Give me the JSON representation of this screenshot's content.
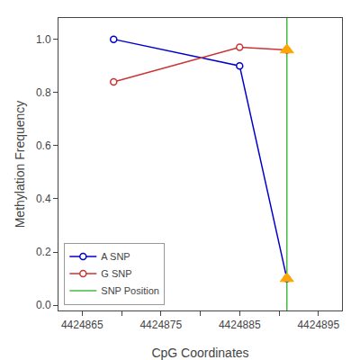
{
  "chart_data": {
    "type": "line",
    "xlabel": "CpG Coordinates",
    "ylabel": "Methylation Frequency",
    "series": [
      {
        "name": "A SNP",
        "type": "line",
        "color": "#0000CC",
        "marker": "circle",
        "x": [
          4424869,
          4424885,
          4424891
        ],
        "values": [
          1.0,
          0.9,
          0.1
        ]
      },
      {
        "name": "G SNP",
        "type": "line",
        "color": "#CC3333",
        "marker": "circle",
        "x": [
          4424869,
          4424885,
          4424891
        ],
        "values": [
          0.84,
          0.97,
          0.96
        ]
      },
      {
        "name": "SNP Position",
        "type": "vline",
        "color": "#44BB44",
        "x": [
          4424891
        ]
      },
      {
        "type": "scatter",
        "marker": "triangle-up",
        "color": "#FFA500",
        "x": [
          4424891,
          4424891
        ],
        "values": [
          0.1,
          0.96
        ]
      }
    ],
    "xlim": [
      4424862,
      4424898
    ],
    "ylim": [
      -0.02,
      1.08
    ],
    "xticks": [
      4424865,
      {
        "value": 4424870,
        "label": null
      },
      4424875,
      {
        "value": 4424880,
        "label": null
      },
      4424885,
      {
        "value": 4424890,
        "label": null
      },
      4424895
    ],
    "yticks": [
      {
        "value": 0.0,
        "label": "0.0"
      },
      0.2,
      0.4,
      0.6,
      0.8,
      {
        "value": 1.0,
        "label": "1.0"
      }
    ],
    "grid": false,
    "legend": "lower left"
  }
}
